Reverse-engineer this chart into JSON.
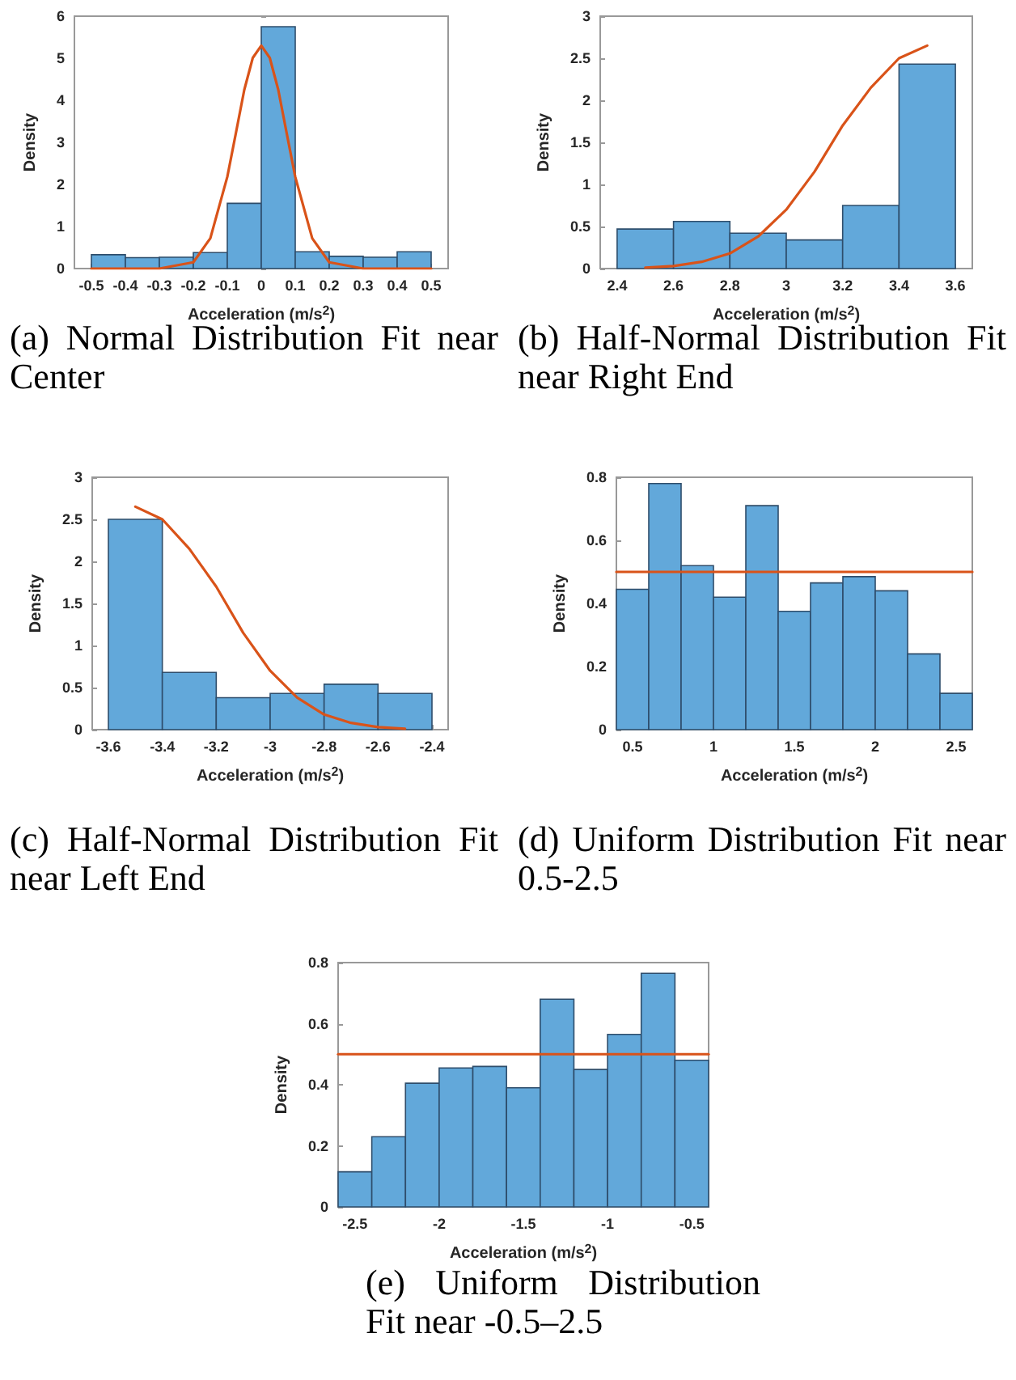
{
  "chart_data": [
    {
      "type": "histogram",
      "title": "(a) Normal Distribution Fit near Center",
      "xlabel": "Acceleration (m/s$^{2}$)",
      "ylabel": "Density",
      "xlim": [
        -0.55,
        0.55
      ],
      "xticks": [
        -0.5,
        -0.4,
        -0.3,
        -0.2,
        -0.1,
        0,
        0.1,
        0.2,
        0.3,
        0.4,
        0.5
      ],
      "ylim": [
        0,
        6
      ],
      "yticks": [
        0,
        1,
        2,
        3,
        4,
        5,
        6
      ],
      "grid": false,
      "series": [
        {
          "color": "#62a8da",
          "bins": [
            -0.5,
            -0.4,
            -0.3,
            -0.2,
            -0.1,
            0,
            0.1,
            0.2,
            0.3,
            0.4,
            0.5
          ],
          "values": [
            0.33,
            0.26,
            0.27,
            0.38,
            1.55,
            5.75,
            0.4,
            0.29,
            0.27,
            0.4
          ]
        },
        {
          "type": "line",
          "color": "#d95319",
          "x": [
            -0.5,
            -0.3,
            -0.2,
            -0.15,
            -0.1,
            -0.075,
            -0.05,
            -0.025,
            0,
            0.025,
            0.05,
            0.075,
            0.1,
            0.15,
            0.2,
            0.3,
            0.5
          ],
          "values": [
            0,
            0,
            0.15,
            0.72,
            2.18,
            3.21,
            4.25,
            5.01,
            5.3,
            5.01,
            4.25,
            3.21,
            2.18,
            0.72,
            0.15,
            0,
            0
          ]
        }
      ]
    },
    {
      "type": "histogram",
      "title": "(b) Half-Normal Distribution Fit near Right End",
      "xlabel": "Acceleration (m/s$^{2}$)",
      "ylabel": "Density",
      "xlim": [
        2.34,
        3.66
      ],
      "xticks": [
        2.4,
        2.6,
        2.8,
        3,
        3.2,
        3.4,
        3.6
      ],
      "ylim": [
        0,
        3
      ],
      "yticks": [
        0,
        0.5,
        1,
        1.5,
        2,
        2.5,
        3
      ],
      "grid": false,
      "series": [
        {
          "color": "#62a8da",
          "bins": [
            2.4,
            2.6,
            2.8,
            3,
            3.2,
            3.4,
            3.6
          ],
          "values": [
            0.47,
            0.56,
            0.42,
            0.34,
            0.75,
            2.43
          ]
        },
        {
          "type": "line",
          "color": "#d95319",
          "x": [
            2.5,
            2.6,
            2.7,
            2.8,
            2.9,
            3,
            3.1,
            3.2,
            3.3,
            3.4,
            3.5
          ],
          "values": [
            0.01,
            0.03,
            0.08,
            0.18,
            0.38,
            0.7,
            1.15,
            1.7,
            2.15,
            2.5,
            2.65
          ]
        }
      ]
    },
    {
      "type": "histogram",
      "title": "(c) Half-Normal Distribution Fit near Left End",
      "xlabel": "Acceleration (m/s$^{2}$)",
      "ylabel": "Density",
      "xlim": [
        -3.66,
        -2.34
      ],
      "xticks": [
        -3.6,
        -3.4,
        -3.2,
        -3,
        -2.8,
        -2.6,
        -2.4
      ],
      "ylim": [
        0,
        3
      ],
      "yticks": [
        0,
        0.5,
        1,
        1.5,
        2,
        2.5,
        3
      ],
      "grid": false,
      "series": [
        {
          "color": "#62a8da",
          "bins": [
            -3.6,
            -3.4,
            -3.2,
            -3,
            -2.8,
            -2.6,
            -2.4
          ],
          "values": [
            2.5,
            0.68,
            0.38,
            0.43,
            0.54,
            0.43
          ]
        },
        {
          "type": "line",
          "color": "#d95319",
          "x": [
            -3.5,
            -3.4,
            -3.3,
            -3.2,
            -3.1,
            -3,
            -2.9,
            -2.8,
            -2.7,
            -2.6,
            -2.5
          ],
          "values": [
            2.65,
            2.5,
            2.15,
            1.7,
            1.15,
            0.7,
            0.38,
            0.18,
            0.08,
            0.03,
            0.01
          ]
        }
      ]
    },
    {
      "type": "histogram",
      "title": "(d) Uniform Distribution Fit near 0.5-2.5",
      "xlabel": "Acceleration (m/s$^{2}$)",
      "ylabel": "Density",
      "xlim": [
        0.4,
        2.6
      ],
      "xticks": [
        0.5,
        1,
        1.5,
        2,
        2.5
      ],
      "ylim": [
        0,
        0.8
      ],
      "yticks": [
        0,
        0.2,
        0.4,
        0.6,
        0.8
      ],
      "grid": false,
      "series": [
        {
          "color": "#62a8da",
          "bins": [
            0.4,
            0.6,
            0.8,
            1,
            1.2,
            1.4,
            1.6,
            1.8,
            2,
            2.2,
            2.4,
            2.6
          ],
          "values": [
            0.445,
            0.78,
            0.52,
            0.42,
            0.71,
            0.375,
            0.465,
            0.485,
            0.44,
            0.24,
            0.115
          ]
        },
        {
          "type": "line",
          "color": "#d95319",
          "x": [
            0.4,
            2.6
          ],
          "values": [
            0.5,
            0.5
          ]
        }
      ]
    },
    {
      "type": "histogram",
      "title": "(e) Uniform Distribution Fit near -0.5–2.5",
      "xlabel": "Acceleration (m/s$^{2}$)",
      "ylabel": "Density",
      "xlim": [
        -2.6,
        -0.4
      ],
      "xticks": [
        -2.5,
        -2,
        -1.5,
        -1,
        -0.5
      ],
      "ylim": [
        0,
        0.8
      ],
      "yticks": [
        0,
        0.2,
        0.4,
        0.6,
        0.8
      ],
      "grid": false,
      "series": [
        {
          "color": "#62a8da",
          "bins": [
            -2.6,
            -2.4,
            -2.2,
            -2,
            -1.8,
            -1.6,
            -1.4,
            -1.2,
            -1,
            -0.8,
            -0.6,
            -0.4
          ],
          "values": [
            0.115,
            0.23,
            0.405,
            0.455,
            0.46,
            0.39,
            0.68,
            0.45,
            0.565,
            0.765,
            0.48
          ]
        },
        {
          "type": "line",
          "color": "#d95319",
          "x": [
            -2.6,
            -0.4
          ],
          "values": [
            0.5,
            0.5
          ]
        }
      ]
    }
  ]
}
